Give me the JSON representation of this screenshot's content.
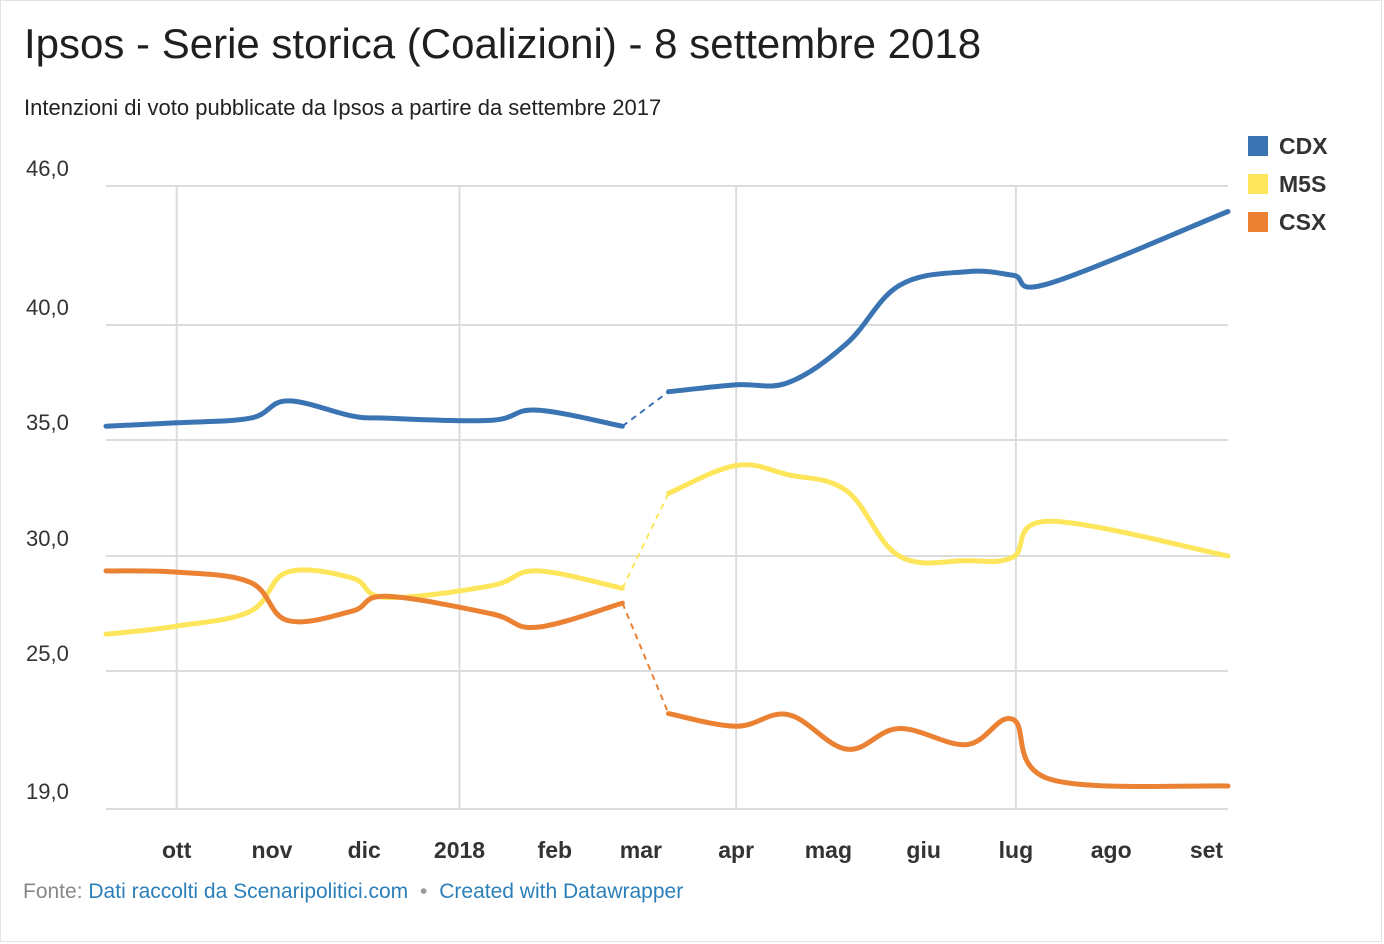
{
  "title": "Ipsos - Serie storica (Coalizioni) - 8 settembre 2018",
  "subtitle": "Intenzioni di voto pubblicate da Ipsos a partire da settembre 2017",
  "footer": {
    "prefix": "Fonte:",
    "source_link": "Dati raccolti da Scenaripolitici.com",
    "separator": "•",
    "credit_link": "Created with Datawrapper"
  },
  "chart_data": {
    "type": "line",
    "title": "Ipsos - Serie storica (Coalizioni) - 8 settembre 2018",
    "subtitle": "Intenzioni di voto pubblicate da Ipsos a partire da settembre 2017",
    "xlabel": "",
    "ylabel": "",
    "ylim": [
      19.0,
      46.0
    ],
    "y_ticks": [
      19.0,
      25.0,
      30.0,
      35.0,
      40.0,
      46.0
    ],
    "y_tick_labels": [
      "19,0",
      "25,0",
      "30,0",
      "35,0",
      "40,0",
      "46,0"
    ],
    "x_ticks": [
      "2017-10-01",
      "2017-11-01",
      "2017-12-01",
      "2018-01-01",
      "2018-02-01",
      "2018-03-01",
      "2018-04-01",
      "2018-05-01",
      "2018-06-01",
      "2018-07-01",
      "2018-08-01",
      "2018-09-01"
    ],
    "x_tick_labels": [
      "ott",
      "nov",
      "dic",
      "2018",
      "feb",
      "mar",
      "apr",
      "mag",
      "giu",
      "lug",
      "ago",
      "set"
    ],
    "x_range": [
      "2017-09-08",
      "2018-09-08"
    ],
    "grid": true,
    "legend_position": "top-right",
    "gap_between": [
      "2018-02-23",
      "2018-03-10"
    ],
    "series": [
      {
        "name": "CDX",
        "color": "#3a74b3",
        "points": [
          [
            "2017-09-08",
            35.6
          ],
          [
            "2017-10-01",
            35.75
          ],
          [
            "2017-10-25",
            35.95
          ],
          [
            "2017-11-06",
            36.7
          ],
          [
            "2017-11-27",
            36.05
          ],
          [
            "2017-12-08",
            35.95
          ],
          [
            "2018-01-11",
            35.85
          ],
          [
            "2018-01-26",
            36.3
          ],
          [
            "2018-02-23",
            35.6
          ],
          [
            "2018-03-10",
            37.1
          ],
          [
            "2018-04-01",
            37.4
          ],
          [
            "2018-04-18",
            37.5
          ],
          [
            "2018-05-07",
            39.2
          ],
          [
            "2018-05-24",
            41.7
          ],
          [
            "2018-06-15",
            42.3
          ],
          [
            "2018-06-30",
            42.15
          ],
          [
            "2018-07-12",
            41.8
          ],
          [
            "2018-09-08",
            44.9
          ]
        ]
      },
      {
        "name": "M5S",
        "color": "#fde65b",
        "points": [
          [
            "2017-09-08",
            26.6
          ],
          [
            "2017-10-01",
            26.95
          ],
          [
            "2017-10-25",
            27.6
          ],
          [
            "2017-11-06",
            29.3
          ],
          [
            "2017-11-27",
            29.05
          ],
          [
            "2017-12-08",
            28.2
          ],
          [
            "2018-01-11",
            28.7
          ],
          [
            "2018-01-26",
            29.35
          ],
          [
            "2018-02-23",
            28.6
          ],
          [
            "2018-03-10",
            32.7
          ],
          [
            "2018-04-01",
            33.9
          ],
          [
            "2018-04-18",
            33.5
          ],
          [
            "2018-05-07",
            32.8
          ],
          [
            "2018-05-24",
            30.0
          ],
          [
            "2018-06-15",
            29.8
          ],
          [
            "2018-06-30",
            29.95
          ],
          [
            "2018-07-12",
            31.5
          ],
          [
            "2018-09-08",
            30.0
          ]
        ]
      },
      {
        "name": "CSX",
        "color": "#eb8133",
        "points": [
          [
            "2017-09-08",
            29.35
          ],
          [
            "2017-10-01",
            29.3
          ],
          [
            "2017-10-25",
            28.85
          ],
          [
            "2017-11-06",
            27.2
          ],
          [
            "2017-11-27",
            27.6
          ],
          [
            "2017-12-08",
            28.25
          ],
          [
            "2018-01-11",
            27.5
          ],
          [
            "2018-01-26",
            26.9
          ],
          [
            "2018-02-23",
            27.95
          ],
          [
            "2018-03-10",
            23.15
          ],
          [
            "2018-04-01",
            22.6
          ],
          [
            "2018-04-18",
            23.1
          ],
          [
            "2018-05-07",
            21.6
          ],
          [
            "2018-05-24",
            22.5
          ],
          [
            "2018-06-15",
            21.8
          ],
          [
            "2018-06-30",
            22.9
          ],
          [
            "2018-07-12",
            20.3
          ],
          [
            "2018-09-08",
            20.0
          ]
        ]
      }
    ]
  }
}
